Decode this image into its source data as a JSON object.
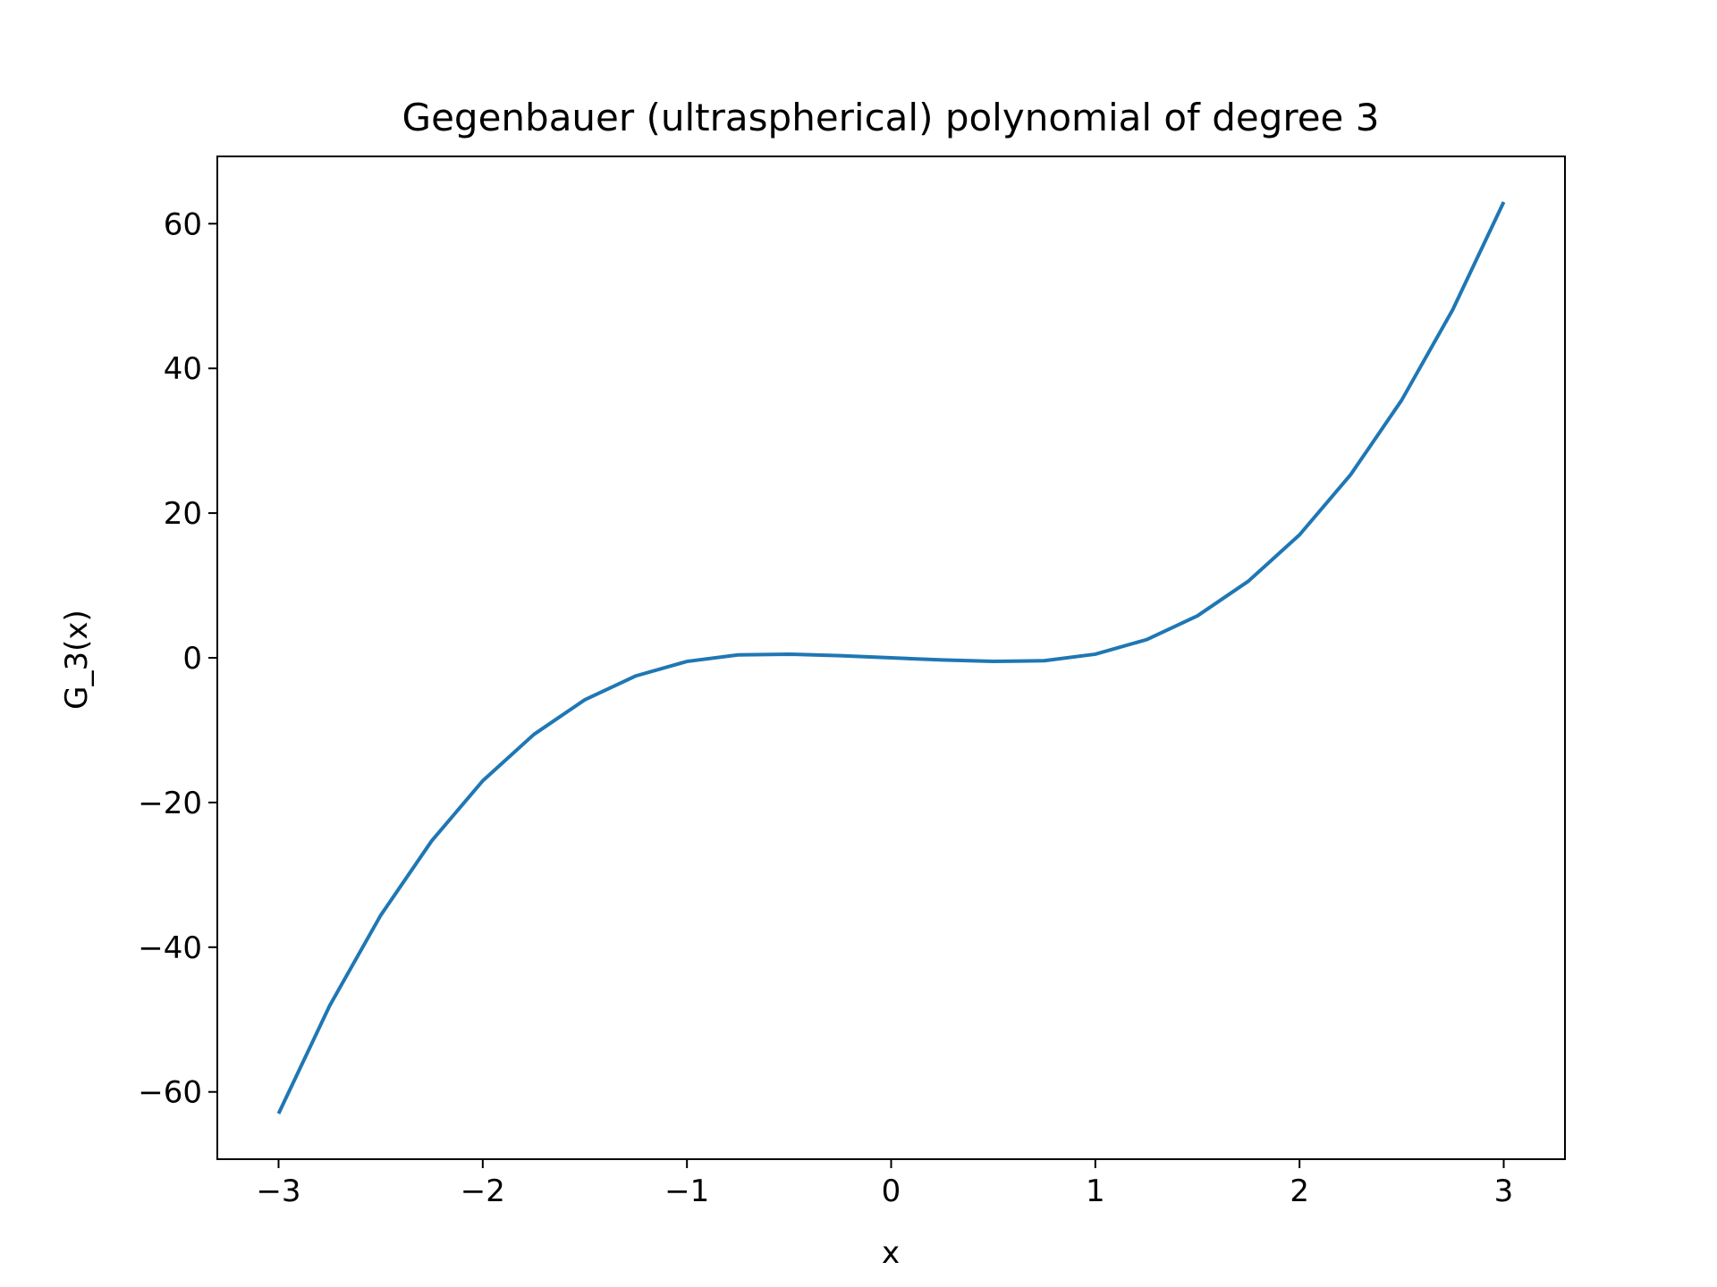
{
  "chart_data": {
    "type": "line",
    "title": "Gegenbauer (ultraspherical) polynomial of degree 3",
    "xlabel": "x",
    "ylabel": "G_3(x)",
    "xlim": [
      -3.3,
      3.3
    ],
    "ylim": [
      -69.3,
      69.3
    ],
    "grid": false,
    "x_ticks": [
      {
        "value": -3,
        "label": "−3"
      },
      {
        "value": -2,
        "label": "−2"
      },
      {
        "value": -1,
        "label": "−1"
      },
      {
        "value": 0,
        "label": "0"
      },
      {
        "value": 1,
        "label": "1"
      },
      {
        "value": 2,
        "label": "2"
      },
      {
        "value": 3,
        "label": "3"
      }
    ],
    "y_ticks": [
      {
        "value": -60,
        "label": "−60"
      },
      {
        "value": -40,
        "label": "−40"
      },
      {
        "value": -20,
        "label": "−20"
      },
      {
        "value": 0,
        "label": "0"
      },
      {
        "value": 20,
        "label": "20"
      },
      {
        "value": 40,
        "label": "40"
      },
      {
        "value": 60,
        "label": "60"
      }
    ],
    "series": [
      {
        "color": "#1f77b4",
        "x": [
          -3.0,
          -2.75,
          -2.5,
          -2.25,
          -2.0,
          -1.75,
          -1.5,
          -1.25,
          -1.0,
          -0.75,
          -0.5,
          -0.25,
          0.0,
          0.25,
          0.5,
          0.75,
          1.0,
          1.25,
          1.5,
          1.75,
          2.0,
          2.25,
          2.5,
          2.75,
          3.0
        ],
        "y": [
          -63.0,
          -48.1,
          -35.6,
          -25.3,
          -17.0,
          -10.6,
          -5.8,
          -2.5,
          -0.5,
          0.4,
          0.5,
          0.3,
          0.0,
          -0.3,
          -0.5,
          -0.4,
          0.5,
          2.5,
          5.8,
          10.6,
          17.0,
          25.3,
          35.6,
          48.1,
          63.0
        ]
      }
    ]
  }
}
